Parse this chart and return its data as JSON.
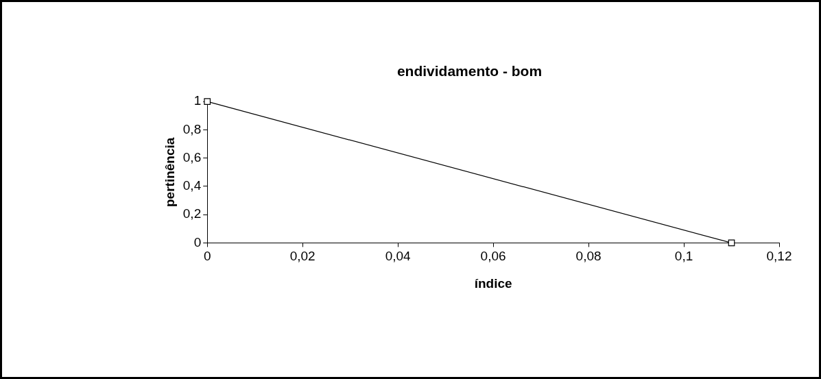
{
  "chart_data": {
    "type": "line",
    "title": "endividamento - bom",
    "xlabel": "índice",
    "ylabel": "pertinência",
    "x": [
      0,
      0.11
    ],
    "series": [
      {
        "color": "#000000",
        "values": [
          1,
          0
        ]
      }
    ],
    "xlim": [
      0,
      0.12
    ],
    "xticks": [
      0,
      {
        "value": 0.02,
        "label": "0,02"
      },
      {
        "value": 0.04,
        "label": "0,04"
      },
      {
        "value": 0.06,
        "label": "0,06"
      },
      {
        "value": 0.08,
        "label": "0,08"
      },
      {
        "value": 0.1,
        "label": "0,1"
      },
      {
        "value": 0.12,
        "label": "0,12"
      }
    ],
    "ylim": [
      0,
      1
    ],
    "yticks": [
      0,
      {
        "value": 0.2,
        "label": "0,2"
      },
      {
        "value": 0.4,
        "label": "0,4"
      },
      {
        "value": 0.6,
        "label": "0,6"
      },
      {
        "value": 0.8,
        "label": "0,8"
      },
      1
    ],
    "marker": "square",
    "line_style": "solid",
    "grid": false,
    "legend": false
  }
}
